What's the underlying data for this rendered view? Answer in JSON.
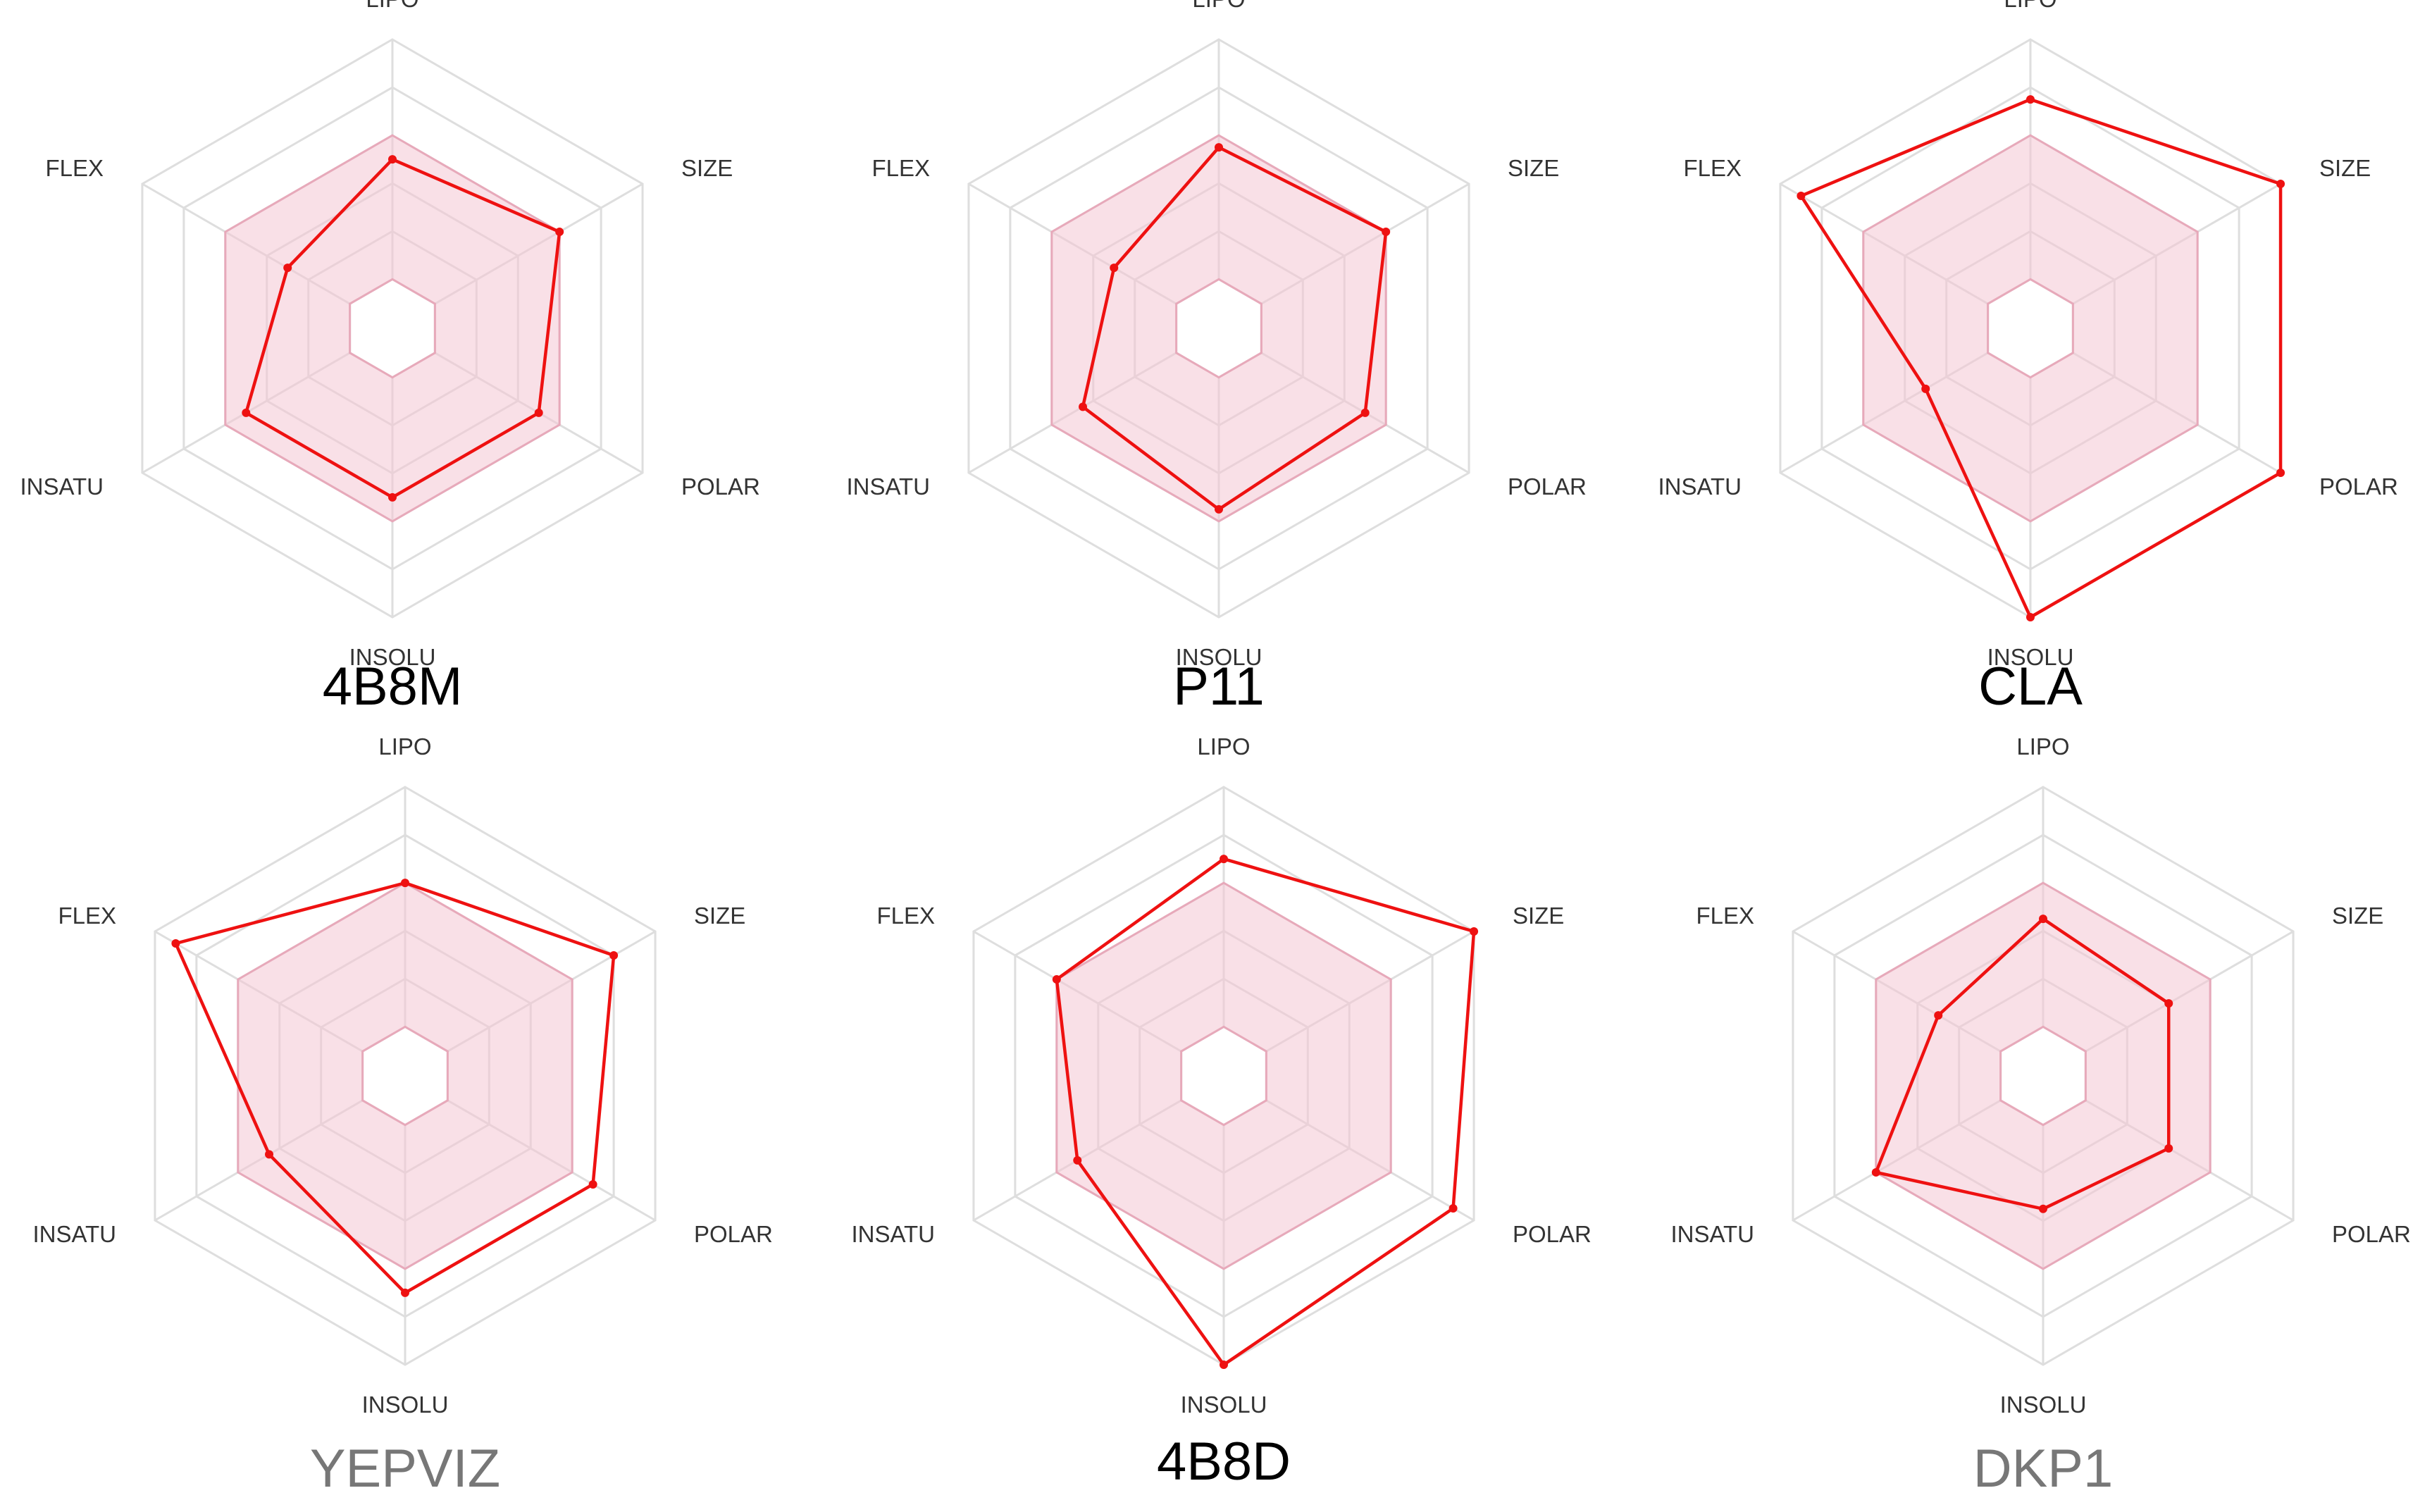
{
  "colors": {
    "grid": "#dedede",
    "optimal_fill": "#f4c6d3",
    "optimal_stroke": "#e7a9ba",
    "data_line": "#ee1111",
    "title_dark": "#000000",
    "title_gray": "#777777"
  },
  "axes": [
    "LIPO",
    "SIZE",
    "POLAR",
    "INSOLU",
    "INSATU",
    "FLEX"
  ],
  "optimal_range": [
    0.6,
    0.6,
    0.6,
    0.6,
    0.6,
    0.6
  ],
  "chart_data": [
    {
      "type": "radar",
      "title": "4B8M",
      "title_color": "#000000",
      "axes": [
        "LIPO",
        "SIZE",
        "POLAR",
        "INSOLU",
        "INSATU",
        "FLEX"
      ],
      "values": [
        0.5,
        0.6,
        0.5,
        0.5,
        0.5,
        0.3
      ],
      "grid_rings": 5,
      "grid": true
    },
    {
      "type": "radar",
      "title": "P11",
      "title_color": "#000000",
      "axes": [
        "LIPO",
        "SIZE",
        "POLAR",
        "INSOLU",
        "INSATU",
        "FLEX"
      ],
      "values": [
        0.55,
        0.6,
        0.5,
        0.55,
        0.45,
        0.3
      ],
      "grid_rings": 5,
      "grid": true
    },
    {
      "type": "radar",
      "title": "CLA",
      "title_color": "#000000",
      "axes": [
        "LIPO",
        "SIZE",
        "POLAR",
        "INSOLU",
        "INSATU",
        "FLEX"
      ],
      "values": [
        0.75,
        1.0,
        1.0,
        1.0,
        0.3,
        0.9
      ],
      "grid_rings": 5,
      "grid": true
    },
    {
      "type": "radar",
      "title": "YEPVIZ",
      "title_color": "#777777",
      "axes": [
        "LIPO",
        "SIZE",
        "POLAR",
        "INSOLU",
        "INSATU",
        "FLEX"
      ],
      "values": [
        0.6,
        0.8,
        0.7,
        0.7,
        0.45,
        0.9
      ],
      "grid_rings": 5,
      "grid": true
    },
    {
      "type": "radar",
      "title": "4B8D",
      "title_color": "#000000",
      "axes": [
        "LIPO",
        "SIZE",
        "POLAR",
        "INSOLU",
        "INSATU",
        "FLEX"
      ],
      "values": [
        0.7,
        1.0,
        0.9,
        1.0,
        0.5,
        0.6
      ],
      "grid_rings": 5,
      "grid": true
    },
    {
      "type": "radar",
      "title": "DKP1",
      "title_color": "#777777",
      "axes": [
        "LIPO",
        "SIZE",
        "POLAR",
        "INSOLU",
        "INSATU",
        "FLEX"
      ],
      "values": [
        0.45,
        0.4,
        0.4,
        0.35,
        0.6,
        0.3
      ],
      "grid_rings": 5,
      "grid": true
    }
  ]
}
